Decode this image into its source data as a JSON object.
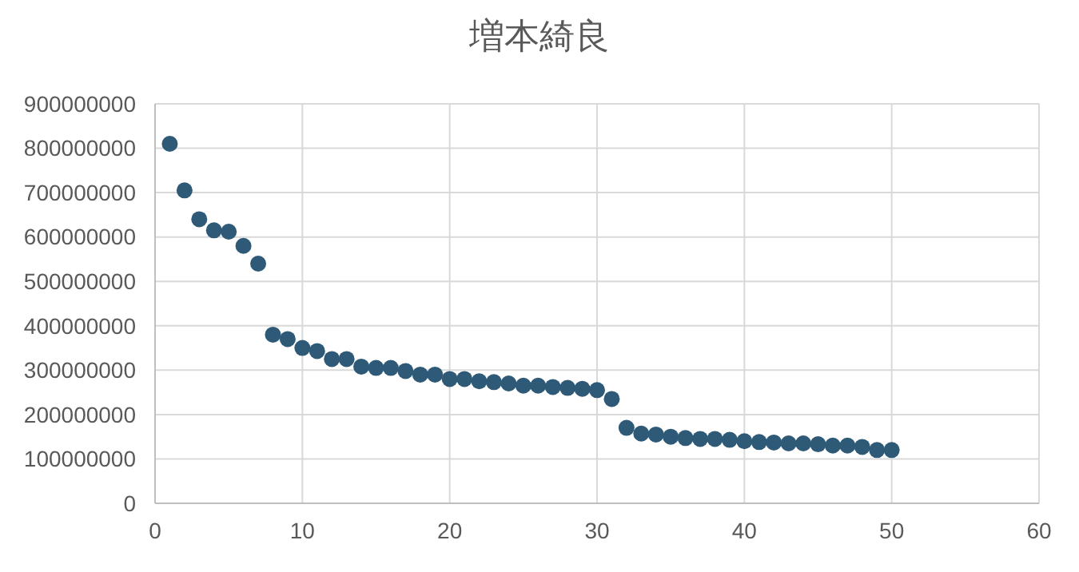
{
  "chart_data": {
    "type": "scatter",
    "title": "増本綺良",
    "marker": "circle",
    "grid": true,
    "x": [
      1,
      2,
      3,
      4,
      5,
      6,
      7,
      8,
      9,
      10,
      11,
      12,
      13,
      14,
      15,
      16,
      17,
      18,
      19,
      20,
      21,
      22,
      23,
      24,
      25,
      26,
      27,
      28,
      29,
      30,
      31,
      32,
      33,
      34,
      35,
      36,
      37,
      38,
      39,
      40,
      41,
      42,
      43,
      44,
      45,
      46,
      47,
      48,
      49,
      50
    ],
    "series": [
      {
        "color": "#2e5a78",
        "values": [
          810000000,
          705000000,
          640000000,
          615000000,
          612000000,
          580000000,
          540000000,
          380000000,
          370000000,
          350000000,
          343000000,
          325000000,
          325000000,
          308000000,
          305000000,
          305000000,
          298000000,
          290000000,
          290000000,
          280000000,
          280000000,
          275000000,
          273000000,
          270000000,
          265000000,
          265000000,
          262000000,
          260000000,
          258000000,
          255000000,
          235000000,
          170000000,
          157000000,
          155000000,
          150000000,
          147000000,
          145000000,
          145000000,
          143000000,
          140000000,
          138000000,
          137000000,
          135000000,
          135000000,
          133000000,
          130000000,
          130000000,
          127000000,
          120000000,
          120000000
        ]
      }
    ],
    "xlim": [
      0,
      60
    ],
    "xticks": [
      0,
      10,
      20,
      30,
      40,
      50,
      60
    ],
    "ylim": [
      0,
      900000000
    ],
    "yticks": [
      0,
      100000000,
      200000000,
      300000000,
      400000000,
      500000000,
      600000000,
      700000000,
      800000000,
      900000000
    ]
  }
}
